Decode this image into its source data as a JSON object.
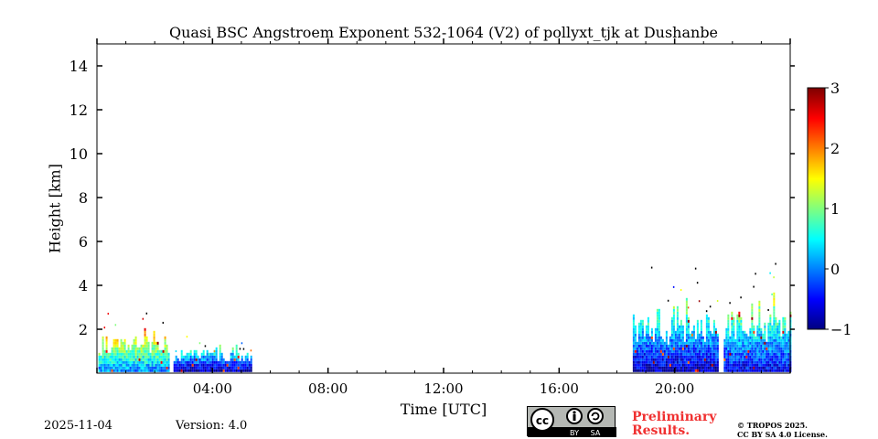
{
  "chart_data": {
    "type": "heatmap",
    "title": "Quasi BSC Angstroem Exponent 532-1064 (V2) of pollyxt_tjk at Dushanbe",
    "xlabel": "Time [UTC]",
    "ylabel": "Height [km]",
    "xlim": [
      0,
      24
    ],
    "ylim": [
      0,
      15
    ],
    "x_ticks": [
      4,
      8,
      12,
      16,
      20
    ],
    "x_tick_labels": [
      "04:00",
      "08:00",
      "12:00",
      "16:00",
      "20:00"
    ],
    "y_ticks": [
      2,
      4,
      6,
      8,
      10,
      12,
      14
    ],
    "y_tick_labels": [
      "2",
      "4",
      "6",
      "8",
      "10",
      "12",
      "14"
    ],
    "colorbar": {
      "range": [
        -1,
        3
      ],
      "ticks": [
        -1,
        0,
        1,
        2,
        3
      ],
      "tick_labels": [
        "−1",
        "0",
        "1",
        "2",
        "3"
      ],
      "colormap": "jet"
    },
    "segments": [
      {
        "start_h": 0.05,
        "end_h": 2.5,
        "top_km": 1.6,
        "typical_value": 0.6
      },
      {
        "start_h": 2.65,
        "end_h": 5.35,
        "top_km": 1.0,
        "typical_value": -0.3
      },
      {
        "start_h": 18.55,
        "end_h": 21.5,
        "top_km": 2.7,
        "typical_value": -0.2
      },
      {
        "start_h": 21.7,
        "end_h": 24.0,
        "top_km": 2.8,
        "typical_value": 0.0
      }
    ],
    "grid": false
  },
  "footer": {
    "date": "2025-11-04",
    "version": "Version: 4.0",
    "preliminary": "Preliminary Results.",
    "copyright_line1": "© TROPOS 2025.",
    "copyright_line2": "CC BY SA 4.0 License.",
    "license_badge": "CC BY SA"
  }
}
